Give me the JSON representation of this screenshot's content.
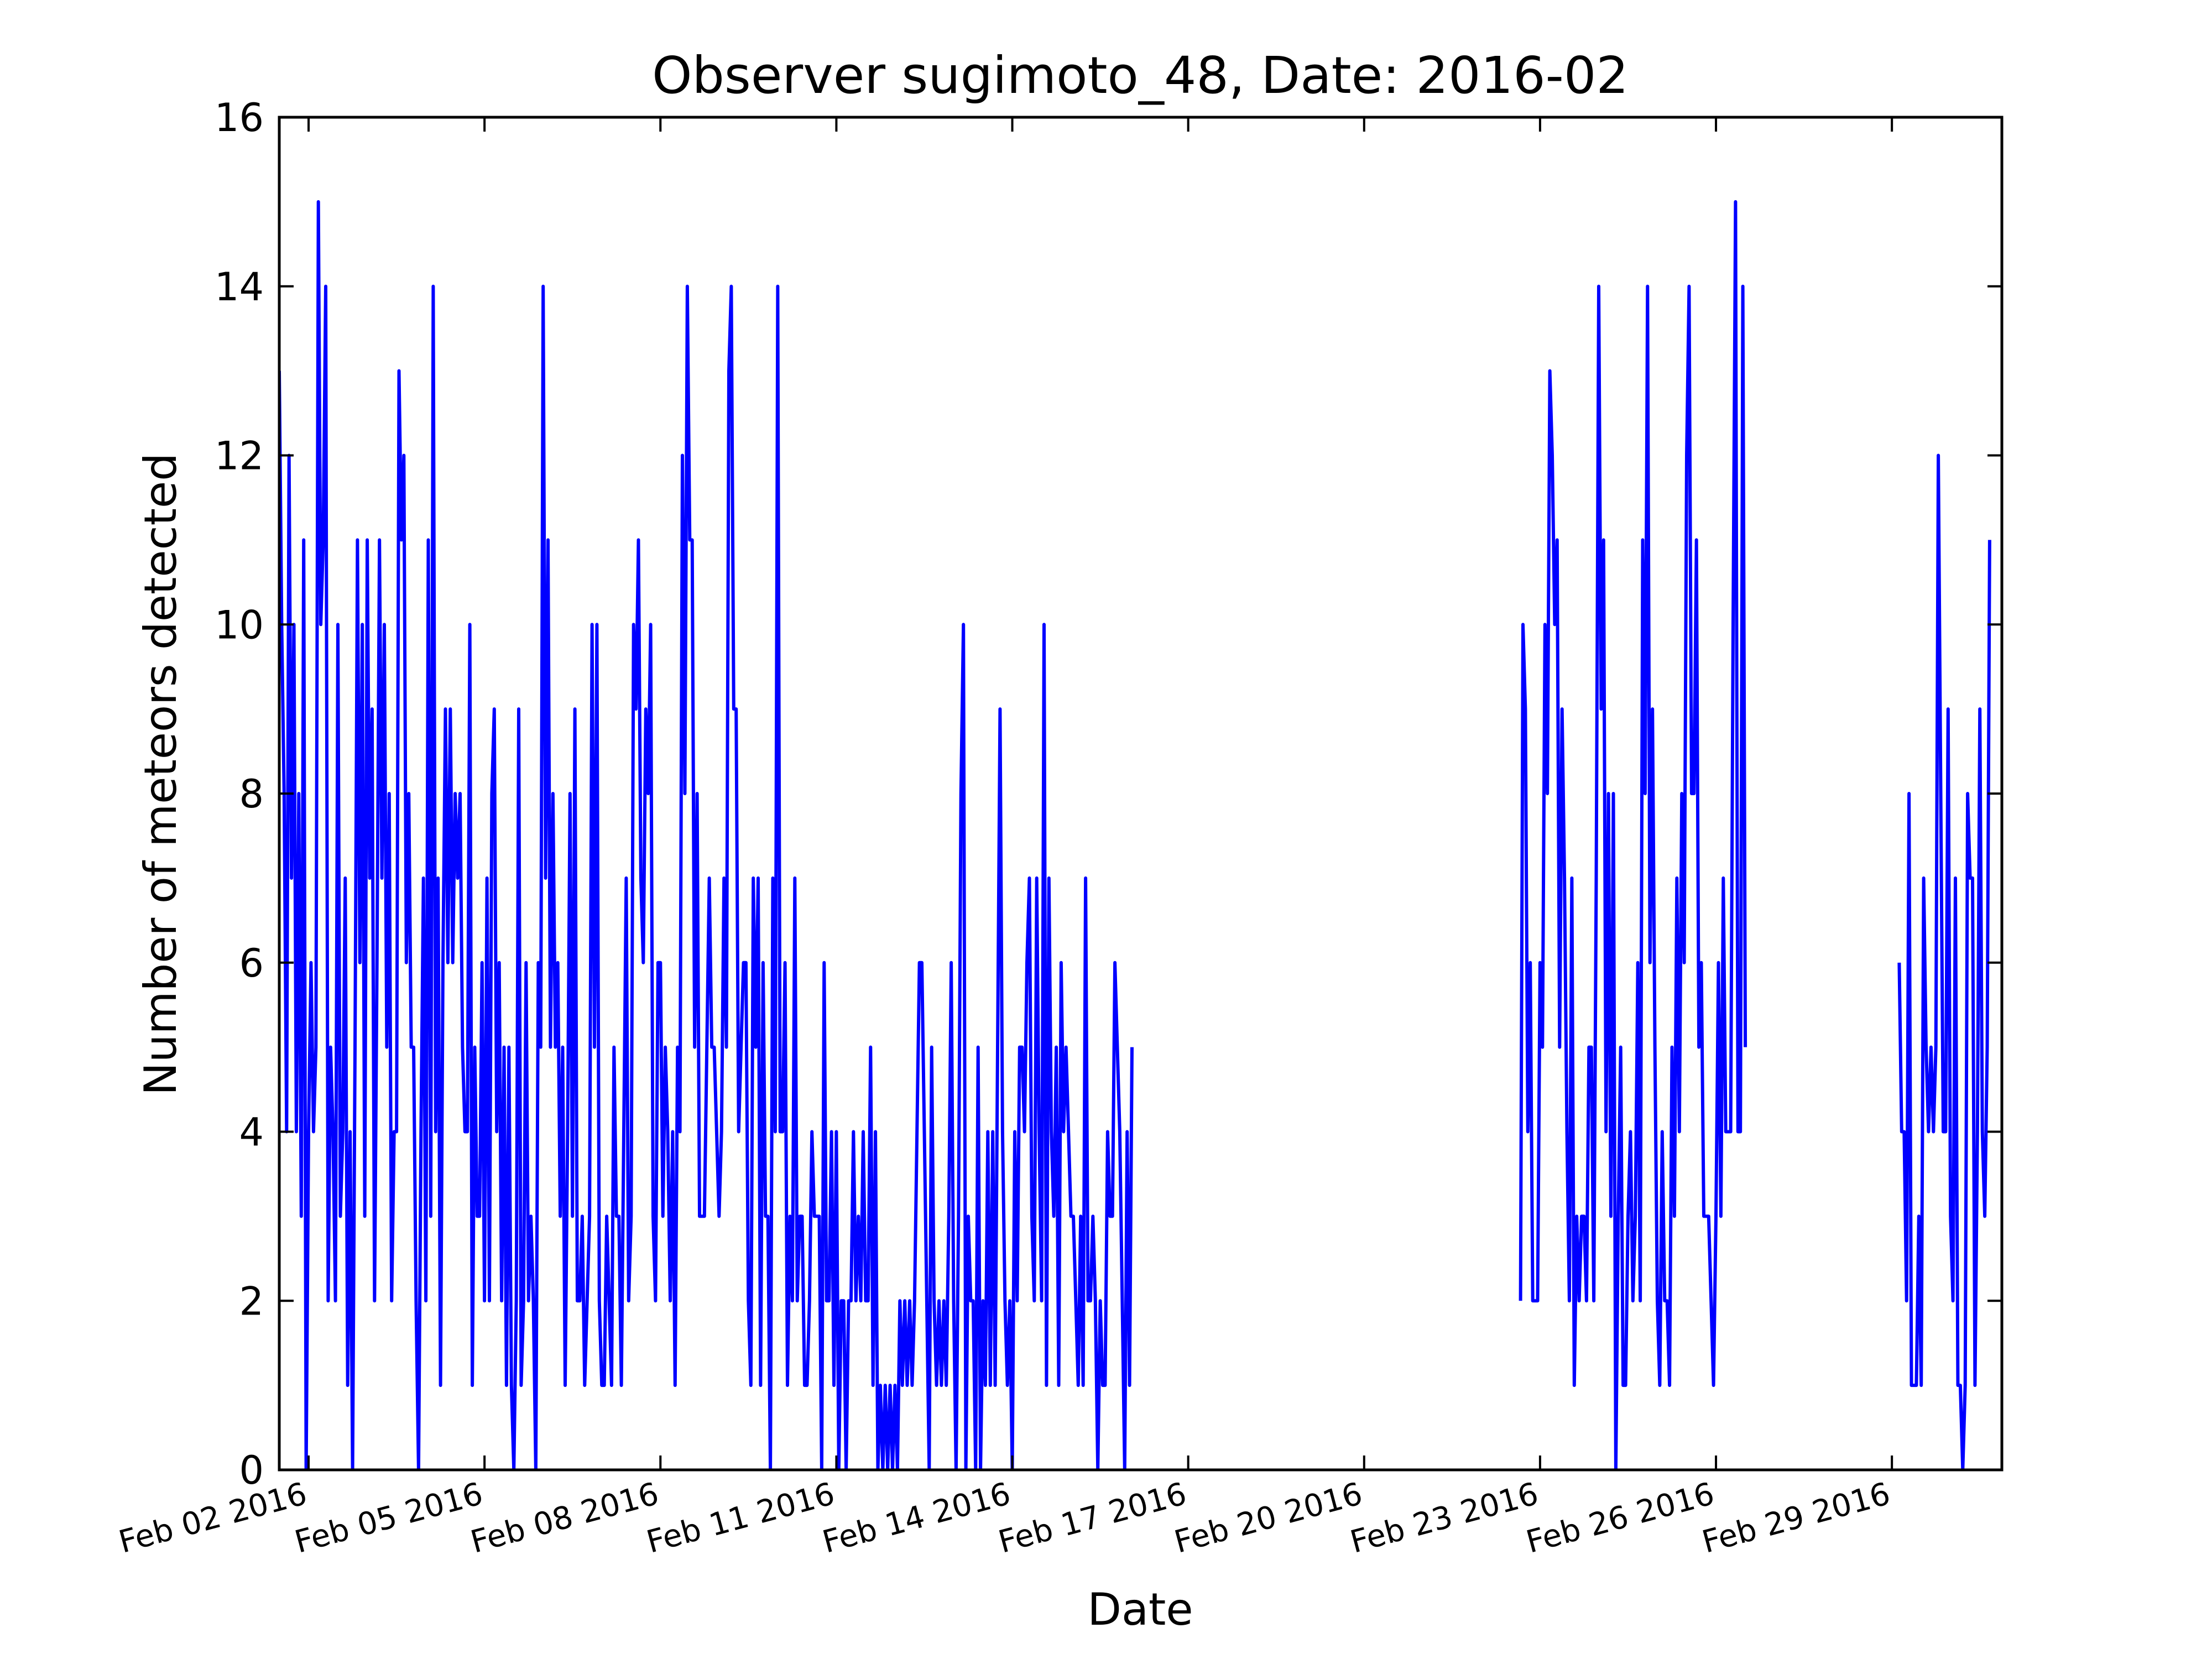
{
  "chart_data": {
    "type": "line",
    "title": "Observer sugimoto_48, Date: 2016-02",
    "xlabel": "Date",
    "ylabel": "Number of meteors detected",
    "ylim": [
      0,
      16
    ],
    "xlim": [
      "2016-02-01 12:00",
      "2016-03-01 21:00"
    ],
    "yticks": [
      0,
      2,
      4,
      6,
      8,
      10,
      12,
      14,
      16
    ],
    "xticks": [
      {
        "date": "2016-02-02",
        "label": "Feb 02 2016"
      },
      {
        "date": "2016-02-05",
        "label": "Feb 05 2016"
      },
      {
        "date": "2016-02-08",
        "label": "Feb 08 2016"
      },
      {
        "date": "2016-02-11",
        "label": "Feb 11 2016"
      },
      {
        "date": "2016-02-14",
        "label": "Feb 14 2016"
      },
      {
        "date": "2016-02-17",
        "label": "Feb 17 2016"
      },
      {
        "date": "2016-02-20",
        "label": "Feb 20 2016"
      },
      {
        "date": "2016-02-23",
        "label": "Feb 23 2016"
      },
      {
        "date": "2016-02-26",
        "label": "Feb 26 2016"
      },
      {
        "date": "2016-02-29",
        "label": "Feb 29 2016"
      }
    ],
    "grid": false,
    "line_color": "#0000ff",
    "series": [
      {
        "segments": [
          {
            "start": "2016-02-01 12:00",
            "step_hours": 1,
            "values": [
              13,
              10,
              8,
              4,
              12,
              7,
              10,
              4,
              8,
              3,
              11,
              0,
              4,
              6,
              4,
              5,
              15,
              10,
              11,
              14,
              2,
              5,
              4,
              2,
              10,
              3,
              4,
              7,
              1,
              4,
              0,
              5,
              11,
              6,
              10,
              3,
              11,
              7,
              9,
              2,
              6,
              11,
              7,
              10,
              5,
              8,
              2,
              4,
              4,
              13,
              11,
              12,
              6,
              8,
              5,
              5,
              2,
              0,
              4,
              7,
              2,
              11,
              3,
              14,
              4,
              7,
              1,
              6,
              9,
              6,
              9,
              6,
              8,
              7,
              8,
              5,
              4,
              4,
              10,
              1,
              5,
              3,
              3,
              6,
              2,
              7,
              2,
              8,
              9,
              4,
              6,
              2,
              5,
              1,
              5,
              1,
              0,
              2,
              9,
              1,
              2,
              6,
              2,
              3,
              2,
              0,
              6,
              5,
              14,
              7,
              11,
              5,
              8,
              5,
              6,
              3,
              5,
              1,
              4,
              8,
              3,
              9,
              2,
              2,
              3,
              1,
              2,
              3,
              10,
              5,
              10,
              2,
              1,
              1,
              3,
              2,
              1,
              5,
              3,
              3,
              1,
              4,
              7,
              2,
              3,
              10,
              9,
              11,
              7,
              6,
              9,
              8,
              10,
              3,
              2,
              6,
              6,
              3,
              5,
              4,
              2,
              4,
              1,
              5,
              4,
              12,
              8,
              14,
              11,
              11,
              5,
              8,
              3,
              3,
              3,
              5,
              7,
              5,
              5,
              4,
              3,
              4,
              7,
              5,
              13,
              14,
              9,
              9,
              4,
              5,
              6,
              6,
              2,
              1,
              7,
              5,
              7,
              1,
              6,
              3,
              3,
              0,
              7,
              4,
              14,
              4,
              4,
              6,
              1,
              3,
              2,
              7,
              2,
              3,
              3,
              1,
              1,
              2,
              4,
              3,
              3,
              3,
              0,
              6,
              2,
              2,
              4,
              1,
              4,
              0,
              2,
              2,
              0,
              2,
              2,
              4,
              2,
              3,
              2,
              4,
              2,
              2,
              5,
              1,
              4,
              0,
              1,
              0,
              1,
              0,
              1,
              0,
              1,
              0,
              2,
              1,
              2,
              1,
              2,
              1,
              2,
              4,
              6,
              6,
              4,
              2,
              0,
              5,
              2,
              1,
              2,
              1,
              2,
              1,
              3,
              6,
              2,
              0,
              3,
              8,
              10,
              0,
              3,
              2,
              2,
              0,
              5,
              0,
              2,
              1,
              4,
              1,
              4,
              1,
              5,
              9,
              4,
              2,
              1,
              2,
              0,
              4,
              2,
              5,
              5,
              4,
              6,
              7,
              3,
              2,
              7,
              4,
              2,
              10,
              1,
              7,
              4,
              3,
              5,
              1,
              6,
              4,
              5,
              4,
              3,
              3,
              2,
              1,
              3,
              1,
              7,
              2,
              2,
              3,
              2,
              0,
              2,
              1,
              1,
              4,
              3,
              3,
              6,
              5,
              4,
              2,
              0,
              4,
              1,
              5
            ]
          },
          {
            "start": "2016-02-22 16:00",
            "step_hours": 1,
            "values": [
              2,
              10,
              9,
              4,
              6,
              2,
              2,
              2,
              6,
              5,
              10,
              8,
              13,
              12,
              10,
              11,
              5,
              9,
              7,
              4,
              2,
              7,
              1,
              3,
              2,
              3,
              3,
              2,
              5,
              5,
              2,
              7,
              14,
              9,
              11,
              4,
              8,
              3,
              8,
              0,
              3,
              5,
              1,
              1,
              3,
              4,
              2,
              3,
              6,
              2,
              11,
              8,
              14,
              6,
              9,
              5,
              2,
              1,
              4,
              2,
              2,
              1,
              5,
              3,
              7,
              4,
              8,
              6,
              12,
              14,
              8,
              8,
              11,
              5,
              6,
              3,
              3,
              3,
              2,
              1,
              3,
              6,
              3,
              7,
              4,
              4,
              4,
              10,
              15,
              4,
              4,
              14,
              5
            ]
          },
          {
            "start": "2016-02-29 03:00",
            "step_hours": 1,
            "values": [
              6,
              4,
              4,
              2,
              8,
              1,
              1,
              1,
              3,
              1,
              7,
              5,
              4,
              5,
              4,
              5,
              12,
              8,
              4,
              4,
              9,
              3,
              2,
              7,
              1,
              1,
              0,
              1,
              8,
              7,
              7,
              1,
              4,
              9,
              4,
              3,
              5,
              11
            ]
          }
        ]
      }
    ]
  }
}
